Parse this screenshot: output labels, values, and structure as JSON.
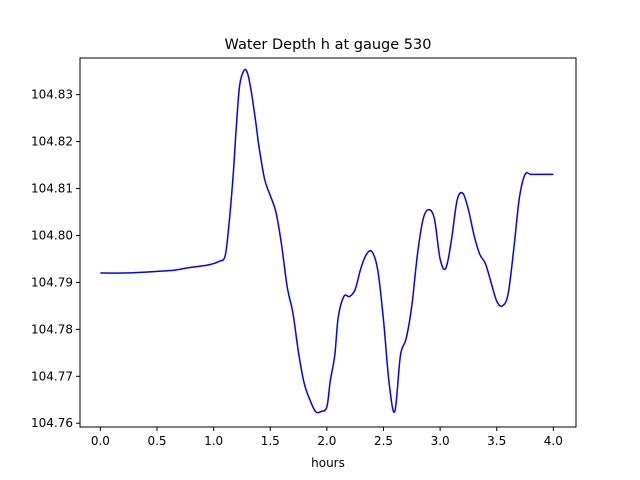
{
  "chart_data": {
    "type": "line",
    "title": "Water Depth h at gauge 530",
    "xlabel": "hours",
    "ylabel": "",
    "xlim": [
      -0.18,
      4.2
    ],
    "ylim": [
      104.7592,
      104.8378
    ],
    "grid": false,
    "xticks": [
      "0.0",
      "0.5",
      "1.0",
      "1.5",
      "2.0",
      "2.5",
      "3.0",
      "3.5",
      "4.0"
    ],
    "yticks": [
      "104.76",
      "104.77",
      "104.78",
      "104.79",
      "104.80",
      "104.81",
      "104.82",
      "104.83"
    ],
    "series": [
      {
        "color": "#0000ff",
        "x": [
          0.0,
          0.2,
          0.4,
          0.6,
          0.65,
          0.8,
          0.95,
          1.05,
          1.1,
          1.13,
          1.17,
          1.2,
          1.23,
          1.27,
          1.3,
          1.33,
          1.37,
          1.4,
          1.45,
          1.5,
          1.55,
          1.6,
          1.65,
          1.7,
          1.75,
          1.8,
          1.85,
          1.9,
          1.95,
          2.0,
          2.03,
          2.07,
          2.1,
          2.15,
          2.2,
          2.25,
          2.3,
          2.35,
          2.4,
          2.45,
          2.5,
          2.55,
          2.6,
          2.65,
          2.7,
          2.75,
          2.8,
          2.85,
          2.9,
          2.95,
          3.0,
          3.05,
          3.1,
          3.15,
          3.2,
          3.25,
          3.3,
          3.35,
          3.4,
          3.45,
          3.5,
          3.55,
          3.6,
          3.65,
          3.7,
          3.75,
          3.8,
          3.85,
          3.9,
          3.95,
          4.0
        ],
        "y": [
          104.792,
          104.792,
          104.7922,
          104.7925,
          104.7926,
          104.7932,
          104.7937,
          104.7945,
          104.7955,
          104.801,
          104.812,
          104.823,
          104.832,
          104.8352,
          104.8345,
          104.831,
          104.8245,
          104.819,
          104.812,
          104.8085,
          104.805,
          104.798,
          104.789,
          104.7835,
          104.775,
          104.7685,
          104.765,
          104.7625,
          104.7625,
          104.7635,
          104.769,
          104.7745,
          104.7825,
          104.787,
          104.787,
          104.7885,
          104.793,
          104.796,
          104.7965,
          104.7925,
          104.782,
          104.7685,
          104.7625,
          104.7745,
          104.778,
          104.785,
          104.796,
          104.8035,
          104.8055,
          104.8035,
          104.795,
          104.793,
          104.799,
          104.8075,
          104.809,
          104.8055,
          104.8,
          104.796,
          104.794,
          104.79,
          104.786,
          104.785,
          104.7875,
          104.797,
          104.808,
          104.813,
          104.813,
          104.813,
          104.813,
          104.813,
          104.813
        ]
      }
    ]
  }
}
